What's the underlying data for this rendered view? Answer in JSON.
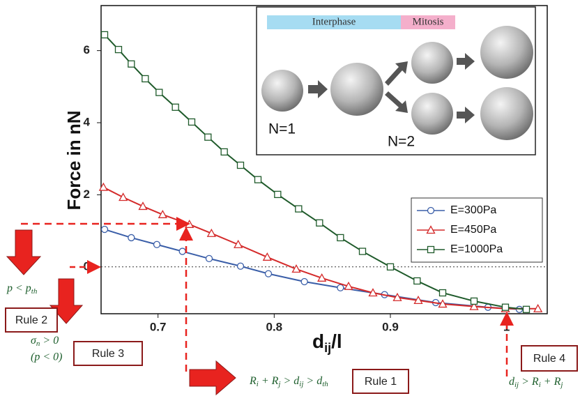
{
  "chart_data": {
    "type": "line",
    "ylabel": "Force in nN",
    "xlabel": [
      "d",
      "ij",
      "/l"
    ],
    "xlim": [
      0.651,
      1.035
    ],
    "ylim": [
      -1.3,
      7.25
    ],
    "xticks": [
      0.7,
      0.8,
      0.9,
      1.0
    ],
    "yticks": [
      0,
      2,
      4,
      6
    ],
    "zero_line": true,
    "legend": "lower right",
    "series": [
      {
        "name": "E=300Pa",
        "color": "#3a5ea8",
        "marker": "circle",
        "x": [
          0.654,
          0.677,
          0.699,
          0.721,
          0.744,
          0.771,
          0.795,
          0.826,
          0.857,
          0.895,
          0.939,
          0.984,
          1.011
        ],
        "values": [
          1.04,
          0.81,
          0.62,
          0.43,
          0.23,
          0.02,
          -0.19,
          -0.41,
          -0.58,
          -0.77,
          -0.99,
          -1.12,
          -1.18
        ]
      },
      {
        "name": "E=450Pa",
        "color": "#d42a2a",
        "marker": "triangle",
        "x": [
          0.653,
          0.67,
          0.687,
          0.704,
          0.727,
          0.746,
          0.769,
          0.794,
          0.819,
          0.841,
          0.864,
          0.885,
          0.906,
          0.924,
          0.945,
          0.972,
          0.999,
          1.027
        ],
        "values": [
          2.21,
          1.93,
          1.68,
          1.45,
          1.18,
          0.93,
          0.62,
          0.27,
          -0.06,
          -0.31,
          -0.54,
          -0.72,
          -0.85,
          -0.93,
          -1.03,
          -1.1,
          -1.16,
          -1.16
        ]
      },
      {
        "name": "E=1000Pa",
        "color": "#1e5a2a",
        "marker": "square",
        "x": [
          0.654,
          0.666,
          0.677,
          0.689,
          0.701,
          0.715,
          0.729,
          0.743,
          0.757,
          0.771,
          0.786,
          0.803,
          0.821,
          0.839,
          0.857,
          0.876,
          0.9,
          0.923,
          0.945,
          0.972,
          0.999,
          1.017
        ],
        "values": [
          6.44,
          6.03,
          5.63,
          5.22,
          4.84,
          4.43,
          4.02,
          3.6,
          3.19,
          2.82,
          2.42,
          2.01,
          1.61,
          1.22,
          0.81,
          0.43,
          0.0,
          -0.39,
          -0.72,
          -0.95,
          -1.12,
          -1.18
        ]
      }
    ]
  },
  "inset": {
    "phases": [
      "Interphase",
      "Mitosis"
    ],
    "counts": [
      "N=1",
      "N=2"
    ]
  },
  "annotations": {
    "rules": [
      "Rule 1",
      "Rule 2",
      "Rule 3",
      "Rule 4"
    ],
    "rule1_condition": [
      "R",
      "i",
      " + R",
      "j",
      " > d",
      "ij",
      " > d",
      "th"
    ],
    "rule2_condition": [
      "p < p",
      "th"
    ],
    "rule3_condition": [
      "σ",
      "n",
      " > 0"
    ],
    "rule3_note": "(p < 0)",
    "rule4_condition": [
      "d",
      "ij",
      " > R",
      "i",
      " + R",
      "j"
    ]
  }
}
